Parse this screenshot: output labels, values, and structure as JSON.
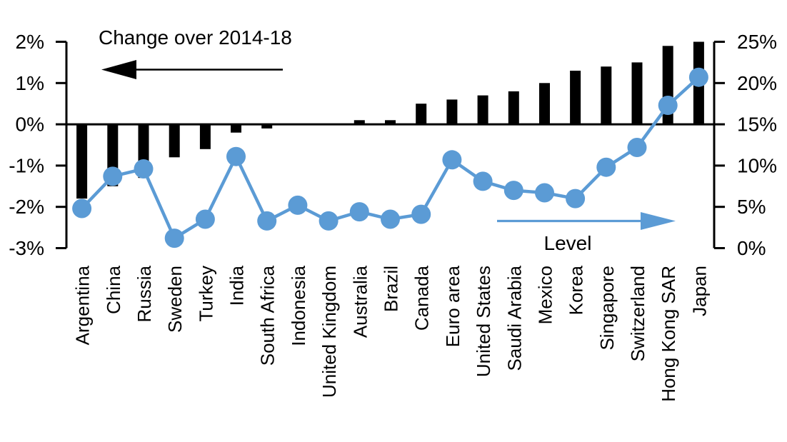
{
  "chart_data": {
    "type": "bar",
    "subtype": "dual-axis-bar-line-combo",
    "categories": [
      "Argentina",
      "China",
      "Russia",
      "Sweden",
      "Turkey",
      "India",
      "South Africa",
      "Indonesia",
      "United Kingdom",
      "Australia",
      "Brazil",
      "Canada",
      "Euro area",
      "United States",
      "Saudi Arabia",
      "Mexico",
      "Korea",
      "Singapore",
      "Switzerland",
      "Hong Kong SAR",
      "Japan"
    ],
    "series": [
      {
        "name": "Change over 2014-18",
        "type": "bar",
        "axis": "left",
        "color": "#000000",
        "unit": "%",
        "values": [
          -1.8,
          -1.5,
          -1.3,
          -0.8,
          -0.6,
          -0.2,
          -0.1,
          0.0,
          0.0,
          0.1,
          0.1,
          0.5,
          0.6,
          0.7,
          0.8,
          1.0,
          1.3,
          1.4,
          1.5,
          1.9,
          2.0
        ]
      },
      {
        "name": "Level",
        "type": "line",
        "axis": "right",
        "color": "#5B9BD5",
        "unit": "%",
        "marker": "circle",
        "values": [
          4.8,
          8.7,
          9.6,
          1.2,
          3.5,
          11.1,
          3.3,
          5.2,
          3.3,
          4.4,
          3.5,
          4.1,
          10.7,
          8.1,
          7.0,
          6.7,
          6.0,
          9.8,
          12.2,
          17.3,
          20.7
        ]
      }
    ],
    "left_axis": {
      "min": -3,
      "max": 2,
      "tick_step": 1,
      "tick_labels": [
        "2%",
        "1%",
        "0%",
        "-1%",
        "-2%",
        "-3%"
      ]
    },
    "right_axis": {
      "min": 0,
      "max": 25,
      "tick_step": 5,
      "tick_labels": [
        "25%",
        "20%",
        "15%",
        "10%",
        "5%",
        "0%"
      ]
    },
    "annotations": {
      "bar_series_label": "Change over 2014-18",
      "bar_arrow_direction": "left",
      "bar_arrow_color": "#000000",
      "line_series_label": "Level",
      "line_arrow_direction": "right",
      "line_arrow_color": "#5B9BD5"
    },
    "grid": false,
    "legend_position": "in-plot-annotations"
  }
}
